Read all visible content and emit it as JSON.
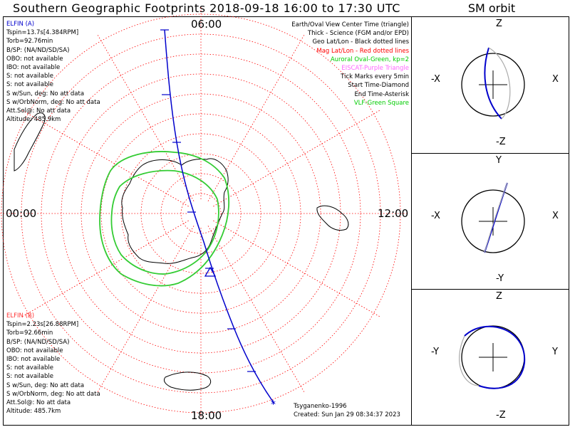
{
  "title": "Southern Geographic Footprints 2018-09-18 16:00 to 17:30 UTC",
  "orbit_title": "SM orbit",
  "time_labels": {
    "top": "06:00",
    "left": "00:00",
    "right": "12:00",
    "bottom": "18:00"
  },
  "elfin_a": {
    "header": "ELFIN (A)",
    "lines": [
      "Tspin=13.7s[4.384RPM]",
      "Torb=92.76min",
      "B/SP: (NA/ND/SD/SA)",
      "OBO: not available",
      "IBO: not available",
      "S: not available",
      "S: not available",
      "S w/Sun, deg: No att data",
      "S w/OrbNorm, deg: No att data",
      "Att.Sol@: No att data",
      "Altitude: 485.9km"
    ]
  },
  "elfin_b": {
    "header": "ELFIN (B)",
    "lines": [
      "Tspin=2.23s[26.88RPM]",
      "Torb=92.66min",
      "B/SP: (NA/ND/SD/SA)",
      "OBO: not available",
      "IBO: not available",
      "S: not available",
      "S: not available",
      "S w/Sun, deg: No att data",
      "S w/OrbNorm, deg: No att data",
      "Att.Sol@: No att data",
      "Altitude: 485.7km"
    ]
  },
  "legend": [
    {
      "text": "Earth/Oval View Center Time (triangle)",
      "color": "#000000"
    },
    {
      "text": "Thick - Science (FGM and/or EPD)",
      "color": "#000000"
    },
    {
      "text": "Geo Lat/Lon - Black dotted lines",
      "color": "#000000"
    },
    {
      "text": "Mag Lat/Lon - Red dotted lines",
      "color": "#ff0000"
    },
    {
      "text": "Auroral Oval-Green, kp=2",
      "color": "#00cc00"
    },
    {
      "text": "EISCAT-Purple Triangle",
      "color": "#ff66ff"
    },
    {
      "text": "Tick Marks every 5min",
      "color": "#000000"
    },
    {
      "text": "Start Time-Diamond",
      "color": "#000000"
    },
    {
      "text": "End Time-Asterisk",
      "color": "#000000"
    },
    {
      "text": "VLF-Green Square",
      "color": "#00cc00"
    }
  ],
  "model": "Tsyganenko-1996",
  "created": "Created: Sun Jan 29 08:34:37 2023",
  "sm_panels": [
    {
      "top": "Z",
      "bottom": "-Z",
      "left": "-X",
      "right": "X"
    },
    {
      "top": "Y",
      "bottom": "-Y",
      "left": "-X",
      "right": "X"
    },
    {
      "top": "Z",
      "bottom": "-Z",
      "left": "-Y",
      "right": "Y"
    }
  ],
  "colors": {
    "grid_red": "#ff0000",
    "orbit_blue": "#0000cc",
    "oval_green": "#33cc33",
    "elfin_a": "#0000cc",
    "elfin_b": "#ff3333"
  }
}
